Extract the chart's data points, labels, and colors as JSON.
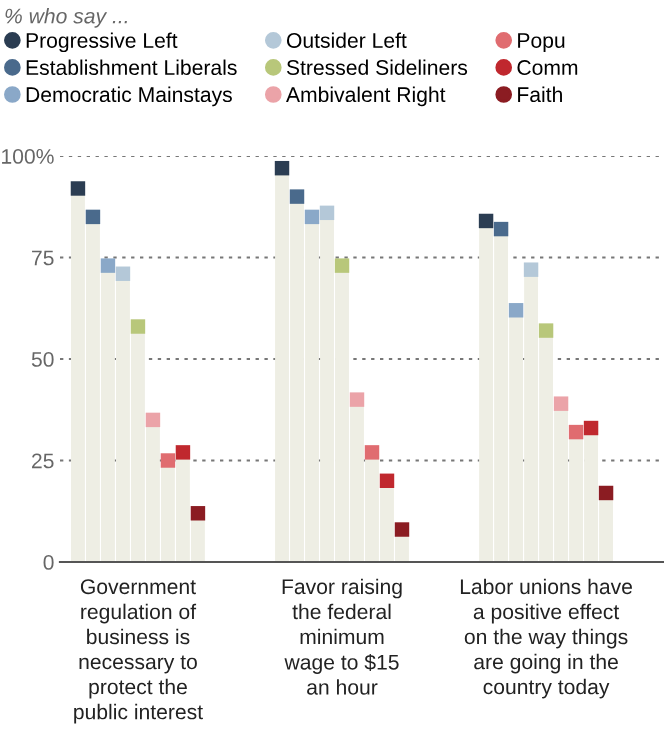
{
  "chart_data": {
    "type": "lollipop",
    "subtitle": "% who say ...",
    "categories": [
      "Government\nregulation of\nbusiness is\nnecessary to\nprotect the\npublic interest",
      "Favor raising\nthe federal\nminimum\nwage to $15\nan hour",
      "Labor unions have\na positive effect\non the way things\nare going in the\ncountry today"
    ],
    "series": [
      {
        "name": "Progressive Left",
        "color": "#2b3d52",
        "values": [
          92,
          97,
          84
        ]
      },
      {
        "name": "Establishment Liberals",
        "color": "#4a6a8c",
        "values": [
          85,
          90,
          82
        ]
      },
      {
        "name": "Democratic Mainstays",
        "color": "#8aa8c8",
        "values": [
          73,
          85,
          62
        ]
      },
      {
        "name": "Outsider Left",
        "color": "#b4c8d8",
        "values": [
          71,
          86,
          72
        ]
      },
      {
        "name": "Stressed Sideliners",
        "color": "#b8c77a",
        "values": [
          58,
          73,
          57
        ]
      },
      {
        "name": "Ambivalent Right",
        "color": "#eba3a8",
        "values": [
          35,
          40,
          39
        ]
      },
      {
        "name": "Popu",
        "color": "#e06c70",
        "values": [
          25,
          27,
          32
        ]
      },
      {
        "name": "Comm",
        "color": "#c0282e",
        "values": [
          27,
          20,
          33
        ]
      },
      {
        "name": "Faith",
        "color": "#8b1c22",
        "values": [
          12,
          8,
          17
        ]
      }
    ],
    "ylim": [
      0,
      100
    ],
    "yticks": [
      {
        "value": 0,
        "label": "0"
      },
      {
        "value": 25,
        "label": "25"
      },
      {
        "value": 50,
        "label": "50"
      },
      {
        "value": 75,
        "label": "75"
      },
      {
        "value": 100,
        "label": "100%"
      }
    ],
    "grid": "y",
    "line_style": "dotted",
    "legend": "top left"
  }
}
